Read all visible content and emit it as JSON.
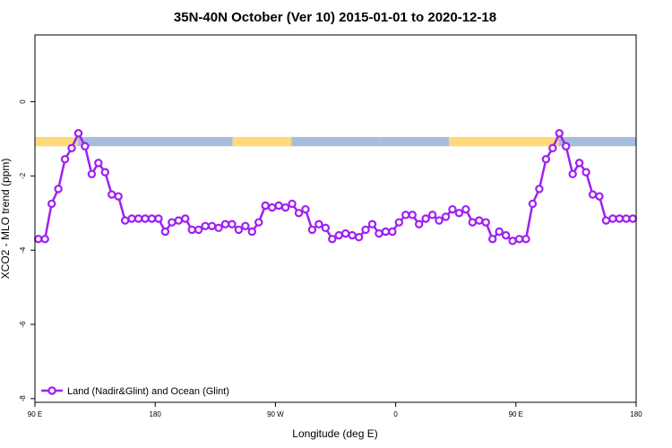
{
  "chart_data": {
    "type": "line",
    "title": "35N-40N October (Ver 10)   2015-01-01 to 2020-12-18",
    "xlabel": "Longitude (deg E)",
    "ylabel": "XCO2 - MLO trend (ppm)",
    "xlim": [
      90,
      540
    ],
    "ylim": [
      -8.1,
      1.8
    ],
    "x_ticks": [
      {
        "value": 90,
        "label": "90 E"
      },
      {
        "value": 180,
        "label": "180"
      },
      {
        "value": 270,
        "label": "90 W"
      },
      {
        "value": 360,
        "label": "0"
      },
      {
        "value": 450,
        "label": "90 E"
      },
      {
        "value": 540,
        "label": "180"
      }
    ],
    "y_ticks": [
      {
        "value": 0,
        "label": "0"
      },
      {
        "value": -2,
        "label": "-2"
      },
      {
        "value": -4,
        "label": "-4"
      },
      {
        "value": -6,
        "label": "-6"
      },
      {
        "value": -8,
        "label": "-8"
      }
    ],
    "grid": false,
    "legend_position": "bottom-left",
    "surface_band": {
      "y_range": [
        -1.2,
        -0.95
      ],
      "land_color": "#FFD97A",
      "ocean_color": "#A7BDDD",
      "segments": [
        {
          "x0": 90,
          "x1": 122,
          "type": "land"
        },
        {
          "x0": 122,
          "x1": 141,
          "type": "ocean"
        },
        {
          "x0": 141,
          "x1": 238,
          "type": "ocean"
        },
        {
          "x0": 238,
          "x1": 283,
          "type": "land"
        },
        {
          "x0": 283,
          "x1": 282,
          "type": "ocean"
        },
        {
          "x0": 283,
          "x1": 348,
          "type": "ocean"
        },
        {
          "x0": 348,
          "x1": 400,
          "type": "ocean"
        },
        {
          "x0": 400,
          "x1": 482,
          "type": "land"
        },
        {
          "x0": 482,
          "x1": 540,
          "type": "ocean"
        }
      ]
    },
    "series": [
      {
        "name": "Land (Nadir&Glint) and Ocean (Glint)",
        "color": "#A020F0",
        "x": [
          92.5,
          97.5,
          102.5,
          107.5,
          112.5,
          117.5,
          122.5,
          127.5,
          132.5,
          137.5,
          142.5,
          147.5,
          152.5,
          157.5,
          162.5,
          167.5,
          172.5,
          177.5,
          182.5,
          187.5,
          192.5,
          197.5,
          202.5,
          207.5,
          212.5,
          217.5,
          222.5,
          227.5,
          232.5,
          237.5,
          242.5,
          247.5,
          252.5,
          257.5,
          262.5,
          267.5,
          272.5,
          277.5,
          282.5,
          287.5,
          292.5,
          297.5,
          302.5,
          307.5,
          312.5,
          317.5,
          322.5,
          327.5,
          332.5,
          337.5,
          342.5,
          347.5,
          352.5,
          357.5,
          362.5,
          367.5,
          372.5,
          377.5,
          382.5,
          387.5,
          392.5,
          397.5,
          402.5,
          407.5,
          412.5,
          417.5,
          422.5,
          427.5,
          432.5,
          437.5,
          442.5,
          447.5,
          452.5,
          457.5,
          462.5,
          467.5,
          472.5,
          477.5,
          482.5,
          487.5,
          492.5,
          497.5,
          502.5,
          507.5,
          512.5,
          517.5,
          522.5,
          527.5,
          532.5,
          537.5
        ],
        "y": [
          -3.7,
          -3.7,
          -2.75,
          -2.35,
          -1.55,
          -1.25,
          -0.85,
          -1.2,
          -1.95,
          -1.65,
          -1.9,
          -2.5,
          -2.55,
          -3.2,
          -3.15,
          -3.15,
          -3.15,
          -3.15,
          -3.15,
          -3.5,
          -3.25,
          -3.2,
          -3.15,
          -3.45,
          -3.45,
          -3.35,
          -3.35,
          -3.4,
          -3.3,
          -3.3,
          -3.45,
          -3.35,
          -3.5,
          -3.25,
          -2.8,
          -2.85,
          -2.8,
          -2.85,
          -2.75,
          -3.0,
          -2.9,
          -3.45,
          -3.3,
          -3.4,
          -3.7,
          -3.6,
          -3.55,
          -3.6,
          -3.65,
          -3.45,
          -3.3,
          -3.55,
          -3.5,
          -3.5,
          -3.25,
          -3.05,
          -3.05,
          -3.3,
          -3.15,
          -3.05,
          -3.2,
          -3.1,
          -2.9,
          -3.0,
          -2.9,
          -3.25,
          -3.2,
          -3.25,
          -3.7,
          -3.5,
          -3.6,
          -3.75,
          -3.7,
          -3.7,
          -2.75,
          -2.35,
          -1.55,
          -1.25,
          -0.85,
          -1.2,
          -1.95,
          -1.65,
          -1.9,
          -2.5,
          -2.55,
          -3.2,
          -3.15,
          -3.15,
          -3.15,
          -3.15
        ]
      }
    ]
  }
}
